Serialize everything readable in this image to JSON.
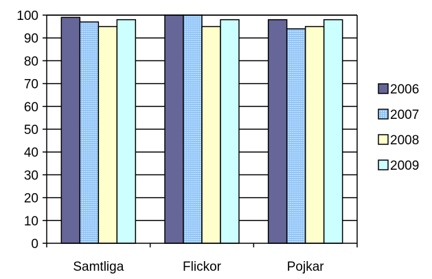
{
  "chart_data": {
    "type": "bar",
    "categories": [
      "Samtliga",
      "Flickor",
      "Pojkar"
    ],
    "series": [
      {
        "name": "2006",
        "values": [
          99,
          100,
          98
        ],
        "color": "#666699",
        "pattern": "solid"
      },
      {
        "name": "2007",
        "values": [
          97,
          100,
          94
        ],
        "color": "#99CCFF",
        "pattern": "dots"
      },
      {
        "name": "2008",
        "values": [
          95,
          95,
          95
        ],
        "color": "#FFFFCC",
        "pattern": "solid"
      },
      {
        "name": "2009",
        "values": [
          98,
          98,
          98
        ],
        "color": "#CCFFFF",
        "pattern": "solid"
      }
    ],
    "ylim": [
      0,
      100
    ],
    "yticks": [
      0,
      10,
      20,
      30,
      40,
      50,
      60,
      70,
      80,
      90,
      100
    ],
    "grid": true,
    "legend": "right",
    "title": "",
    "xlabel": "",
    "ylabel": ""
  }
}
